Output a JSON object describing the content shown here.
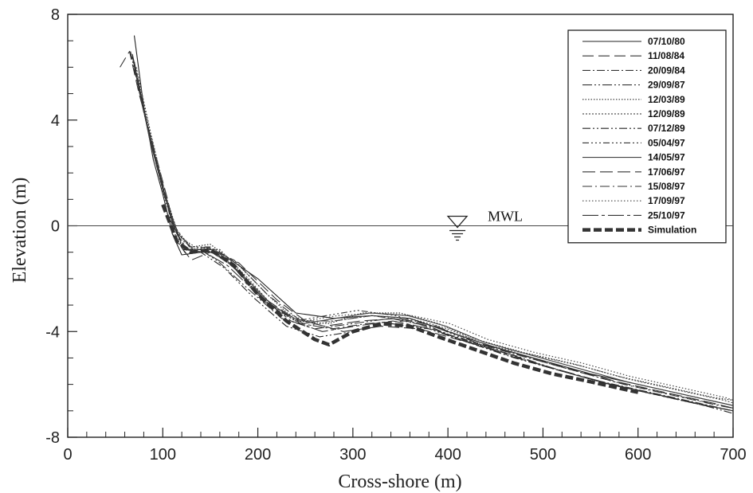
{
  "chart_data": {
    "type": "line",
    "xlabel": "Cross-shore (m)",
    "ylabel": "Elevation (m)",
    "xlim": [
      0,
      700
    ],
    "ylim": [
      -8,
      8
    ],
    "x_ticks": [
      0,
      100,
      200,
      300,
      400,
      500,
      600,
      700
    ],
    "x_tick_labels": [
      "0",
      "100",
      "200",
      "300",
      "400",
      "500",
      "600",
      "700"
    ],
    "y_ticks": [
      -8,
      -4,
      0,
      4,
      8
    ],
    "y_tick_labels": [
      "-8",
      "-4",
      "0",
      "4",
      "8"
    ],
    "grid": false,
    "legend_position": "top-right",
    "annotation": {
      "text": "MWL",
      "x": 410,
      "y": 0
    },
    "reference_line": {
      "y": 0
    },
    "series": [
      {
        "name": "07/10/80",
        "x": [
          70,
          80,
          90,
          100,
          110,
          120,
          140,
          160,
          200,
          240,
          280,
          320,
          360,
          400,
          450,
          500,
          550,
          600,
          650,
          700
        ],
        "y": [
          7.2,
          4.5,
          2.5,
          1.2,
          -0.3,
          -1.1,
          -1.0,
          -1.0,
          -2.0,
          -3.3,
          -3.5,
          -3.4,
          -3.5,
          -4.0,
          -4.6,
          -5.1,
          -5.6,
          -6.0,
          -6.4,
          -6.8
        ]
      },
      {
        "name": "11/08/84",
        "x": [
          55,
          65,
          75,
          90,
          105,
          115,
          130,
          150,
          180,
          220,
          250,
          290,
          330,
          370,
          410,
          460,
          510,
          560,
          610,
          660,
          700
        ],
        "y": [
          6.0,
          6.6,
          5.0,
          3.0,
          1.0,
          -0.6,
          -1.3,
          -1.0,
          -1.4,
          -2.8,
          -3.6,
          -4.0,
          -3.8,
          -3.9,
          -4.3,
          -4.8,
          -5.4,
          -5.9,
          -6.3,
          -6.7,
          -7.0
        ]
      },
      {
        "name": "20/09/84",
        "x": [
          70,
          85,
          100,
          112,
          125,
          145,
          175,
          210,
          245,
          280,
          320,
          360,
          400,
          450,
          500,
          550,
          600,
          650,
          700
        ],
        "y": [
          6.0,
          3.5,
          1.6,
          -0.4,
          -1.1,
          -0.8,
          -1.3,
          -2.6,
          -3.6,
          -3.6,
          -3.4,
          -3.6,
          -4.1,
          -4.7,
          -5.3,
          -5.8,
          -6.2,
          -6.6,
          -7.0
        ]
      },
      {
        "name": "29/09/87",
        "x": [
          68,
          82,
          98,
          110,
          122,
          140,
          160,
          190,
          225,
          260,
          300,
          340,
          380,
          420,
          470,
          520,
          570,
          620,
          670,
          700
        ],
        "y": [
          6.4,
          4.0,
          1.8,
          0.2,
          -0.9,
          -0.9,
          -1.4,
          -2.4,
          -3.5,
          -3.9,
          -3.7,
          -3.5,
          -3.8,
          -4.4,
          -4.9,
          -5.5,
          -6.0,
          -6.4,
          -6.8,
          -7.0
        ]
      },
      {
        "name": "12/03/89",
        "x": [
          70,
          85,
          100,
          115,
          130,
          150,
          180,
          210,
          240,
          275,
          310,
          350,
          390,
          430,
          480,
          530,
          580,
          630,
          680,
          700
        ],
        "y": [
          6.2,
          3.8,
          1.5,
          -0.2,
          -0.8,
          -0.7,
          -1.5,
          -2.6,
          -3.6,
          -3.7,
          -3.3,
          -3.3,
          -3.7,
          -4.3,
          -4.8,
          -5.2,
          -5.7,
          -6.1,
          -6.5,
          -6.6
        ]
      },
      {
        "name": "12/09/89",
        "x": [
          72,
          88,
          104,
          118,
          135,
          160,
          190,
          220,
          250,
          280,
          320,
          360,
          400,
          440,
          490,
          540,
          590,
          640,
          690,
          700
        ],
        "y": [
          6.0,
          3.4,
          1.0,
          -0.5,
          -0.9,
          -0.9,
          -2.0,
          -3.2,
          -3.8,
          -3.6,
          -3.4,
          -3.5,
          -3.9,
          -4.5,
          -4.9,
          -5.3,
          -5.8,
          -6.2,
          -6.6,
          -6.7
        ]
      },
      {
        "name": "07/12/89",
        "x": [
          66,
          80,
          96,
          108,
          120,
          140,
          165,
          195,
          230,
          265,
          300,
          340,
          380,
          420,
          470,
          520,
          570,
          620,
          670,
          700
        ],
        "y": [
          6.6,
          4.3,
          2.0,
          0.4,
          -0.8,
          -1.0,
          -1.6,
          -2.7,
          -3.8,
          -4.2,
          -4.0,
          -3.7,
          -3.9,
          -4.4,
          -5.0,
          -5.5,
          -6.0,
          -6.4,
          -6.8,
          -7.1
        ]
      },
      {
        "name": "05/04/97",
        "x": [
          70,
          84,
          100,
          114,
          128,
          150,
          178,
          208,
          240,
          272,
          305,
          345,
          385,
          425,
          475,
          525,
          575,
          625,
          675,
          700
        ],
        "y": [
          6.1,
          3.7,
          1.4,
          -0.1,
          -0.8,
          -0.8,
          -1.7,
          -2.9,
          -3.6,
          -3.4,
          -3.2,
          -3.4,
          -3.8,
          -4.4,
          -4.9,
          -5.4,
          -5.9,
          -6.3,
          -6.7,
          -6.9
        ]
      },
      {
        "name": "14/05/97",
        "x": [
          71,
          86,
          102,
          116,
          132,
          155,
          185,
          215,
          248,
          282,
          318,
          358,
          398,
          438,
          488,
          538,
          588,
          638,
          688,
          700
        ],
        "y": [
          5.9,
          3.3,
          1.1,
          -0.3,
          -0.9,
          -0.9,
          -1.9,
          -3.0,
          -3.7,
          -3.5,
          -3.3,
          -3.4,
          -3.8,
          -4.4,
          -4.9,
          -5.4,
          -5.9,
          -6.3,
          -6.7,
          -6.8
        ]
      },
      {
        "name": "17/06/97",
        "x": [
          69,
          83,
          99,
          111,
          124,
          146,
          170,
          205,
          238,
          270,
          308,
          348,
          388,
          428,
          478,
          528,
          578,
          628,
          678,
          700
        ],
        "y": [
          6.3,
          3.9,
          1.6,
          0.0,
          -0.9,
          -0.9,
          -1.4,
          -2.7,
          -3.5,
          -3.8,
          -3.6,
          -3.5,
          -3.8,
          -4.4,
          -4.9,
          -5.4,
          -5.9,
          -6.3,
          -6.7,
          -6.9
        ]
      },
      {
        "name": "15/08/97",
        "x": [
          70,
          85,
          101,
          113,
          126,
          148,
          175,
          210,
          245,
          278,
          315,
          355,
          395,
          435,
          485,
          535,
          585,
          635,
          685,
          700
        ],
        "y": [
          6.2,
          3.6,
          1.3,
          -0.2,
          -0.9,
          -0.8,
          -1.6,
          -2.9,
          -3.7,
          -3.9,
          -3.7,
          -3.6,
          -3.9,
          -4.5,
          -5.0,
          -5.5,
          -6.0,
          -6.4,
          -6.8,
          -6.9
        ]
      },
      {
        "name": "17/09/97",
        "x": [
          72,
          87,
          103,
          117,
          134,
          158,
          188,
          218,
          250,
          284,
          322,
          362,
          402,
          442,
          492,
          542,
          592,
          642,
          692,
          700
        ],
        "y": [
          5.8,
          3.2,
          0.9,
          -0.4,
          -0.8,
          -0.9,
          -2.0,
          -3.1,
          -3.6,
          -3.4,
          -3.3,
          -3.4,
          -3.7,
          -4.3,
          -4.8,
          -5.2,
          -5.7,
          -6.1,
          -6.5,
          -6.6
        ]
      },
      {
        "name": "25/10/97",
        "x": [
          68,
          82,
          98,
          110,
          123,
          144,
          168,
          200,
          235,
          268,
          302,
          342,
          382,
          422,
          472,
          522,
          572,
          622,
          672,
          700
        ],
        "y": [
          6.5,
          4.1,
          1.7,
          0.1,
          -0.9,
          -1.0,
          -1.5,
          -2.6,
          -3.6,
          -4.0,
          -3.8,
          -3.6,
          -3.9,
          -4.4,
          -5.0,
          -5.5,
          -6.0,
          -6.4,
          -6.8,
          -7.0
        ]
      },
      {
        "name": "Simulation",
        "x": [
          100,
          115,
          130,
          150,
          175,
          200,
          230,
          260,
          275,
          300,
          330,
          360,
          390,
          430,
          470,
          510,
          550,
          600
        ],
        "y": [
          0.8,
          -0.6,
          -1.0,
          -0.9,
          -1.5,
          -2.6,
          -3.6,
          -4.3,
          -4.5,
          -4.0,
          -3.7,
          -3.8,
          -4.2,
          -4.7,
          -5.2,
          -5.6,
          -5.9,
          -6.3
        ]
      }
    ]
  }
}
